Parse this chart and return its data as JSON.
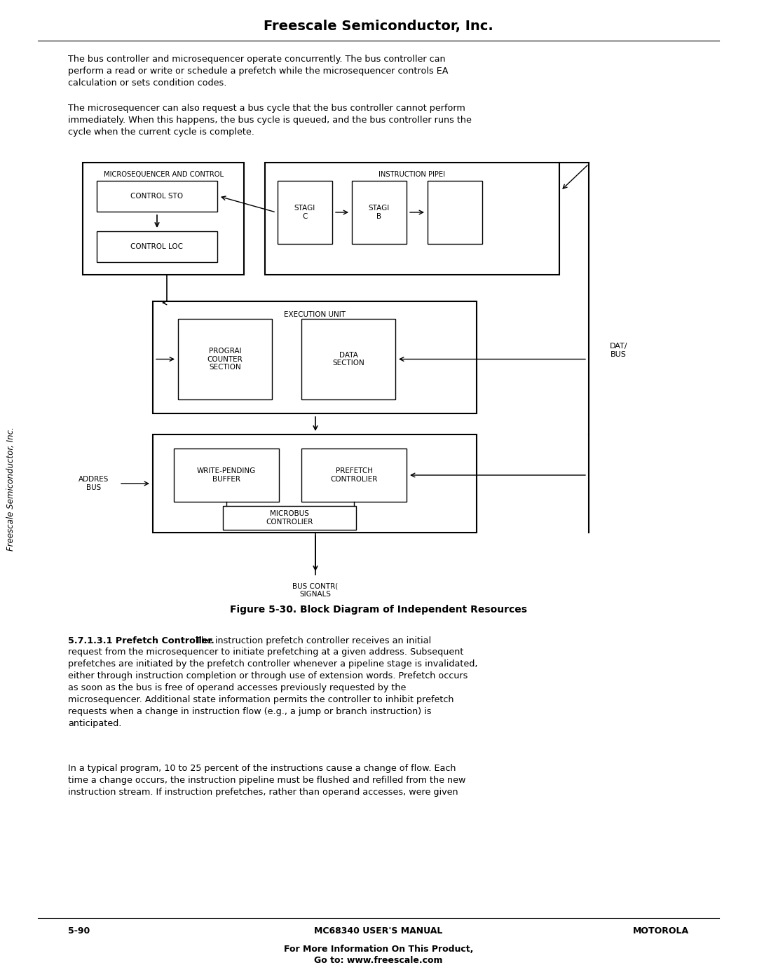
{
  "page_title": "Freescale Semiconductor, Inc.",
  "para1": "The bus controller and microsequencer operate concurrently. The bus controller can\nperform a read or write or schedule a prefetch while the microsequencer controls EA\ncalculation or sets condition codes.",
  "para2": "The microsequencer can also request a bus cycle that the bus controller cannot perform\nimmediately. When this happens, the bus cycle is queued, and the bus controller runs the\ncycle when the current cycle is complete.",
  "figure_caption": "Figure 5-30. Block Diagram of Independent Resources",
  "section_header": "5.7.1.3.1 Prefetch Controller.",
  "section_text_cont": " The instruction prefetch controller receives an initial\nrequest from the microsequencer to initiate prefetching at a given address. Subsequent\nprefetches are initiated by the prefetch controller whenever a pipeline stage is invalidated,\neither through instruction completion or through use of extension words. Prefetch occurs\nas soon as the bus is free of operand accesses previously requested by the\nmicrosequencer. Additional state information permits the controller to inhibit prefetch\nrequests when a change in instruction flow (e.g., a jump or branch instruction) is\nanticipated.",
  "para3": "In a typical program, 10 to 25 percent of the instructions cause a change of flow. Each\ntime a change occurs, the instruction pipeline must be flushed and refilled from the new\ninstruction stream. If instruction prefetches, rather than operand accesses, were given",
  "footer_left": "5-90",
  "footer_center": "MC68340 USER'S MANUAL",
  "footer_right": "MOTOROLA",
  "footer_bottom1": "For More Information On This Product,",
  "footer_bottom2": "Go to: www.freescale.com",
  "sidebar_text": "Freescale Semiconductor, Inc.",
  "bg_color": "#ffffff",
  "text_color": "#000000"
}
